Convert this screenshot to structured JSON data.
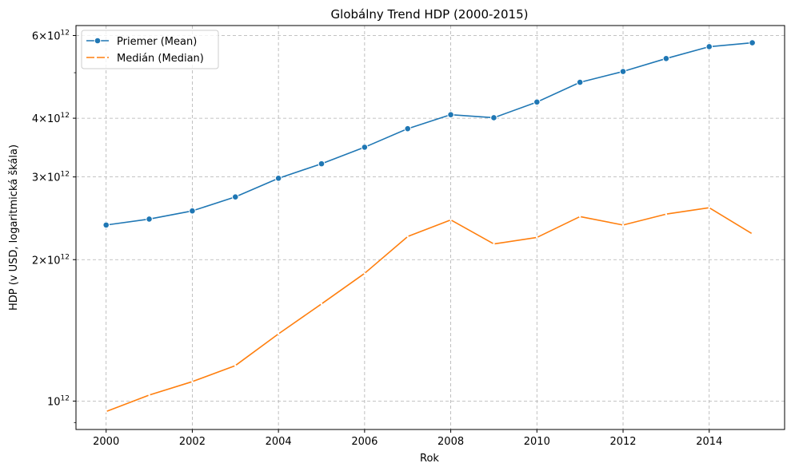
{
  "chart_data": {
    "type": "line",
    "title": "Globálny Trend HDP (2000-2015)",
    "xlabel": "Rok",
    "ylabel": "HDP (v USD, logaritmická škála)",
    "yscale": "log",
    "xlim": [
      1999.3,
      2015.75
    ],
    "ylim": [
      870000000000.0,
      6300000000000.0
    ],
    "grid": true,
    "legend_position": "top-left",
    "x": [
      2000,
      2001,
      2002,
      2003,
      2004,
      2005,
      2006,
      2007,
      2008,
      2009,
      2010,
      2011,
      2012,
      2013,
      2014,
      2015
    ],
    "x_ticks": [
      2000,
      2002,
      2004,
      2006,
      2008,
      2010,
      2012,
      2014
    ],
    "y_ticks": [
      {
        "value": 1000000000000.0,
        "mantissa": "",
        "exponent": "12"
      },
      {
        "value": 2000000000000.0,
        "mantissa": "2×",
        "exponent": "12"
      },
      {
        "value": 3000000000000.0,
        "mantissa": "3×",
        "exponent": "12"
      },
      {
        "value": 4000000000000.0,
        "mantissa": "4×",
        "exponent": "12"
      },
      {
        "value": 6000000000000.0,
        "mantissa": "6×",
        "exponent": "12"
      }
    ],
    "y_minor_ticks": [
      900000000000.0,
      5000000000000.0
    ],
    "series": [
      {
        "name": "Priemer (Mean)",
        "color": "#1f77b4",
        "marker": "circle",
        "values": [
          2370000000000.0,
          2440000000000.0,
          2540000000000.0,
          2720000000000.0,
          2980000000000.0,
          3200000000000.0,
          3470000000000.0,
          3800000000000.0,
          4070000000000.0,
          4010000000000.0,
          4330000000000.0,
          4770000000000.0,
          5030000000000.0,
          5360000000000.0,
          5680000000000.0,
          5790000000000.0
        ]
      },
      {
        "name": "Medián (Median)",
        "color": "#ff7f0e",
        "marker": "none",
        "values": [
          950000000000.0,
          1030000000000.0,
          1100000000000.0,
          1190000000000.0,
          1390000000000.0,
          1610000000000.0,
          1870000000000.0,
          2240000000000.0,
          2430000000000.0,
          2160000000000.0,
          2230000000000.0,
          2470000000000.0,
          2370000000000.0,
          2500000000000.0,
          2580000000000.0,
          2270000000000.0
        ]
      }
    ]
  }
}
